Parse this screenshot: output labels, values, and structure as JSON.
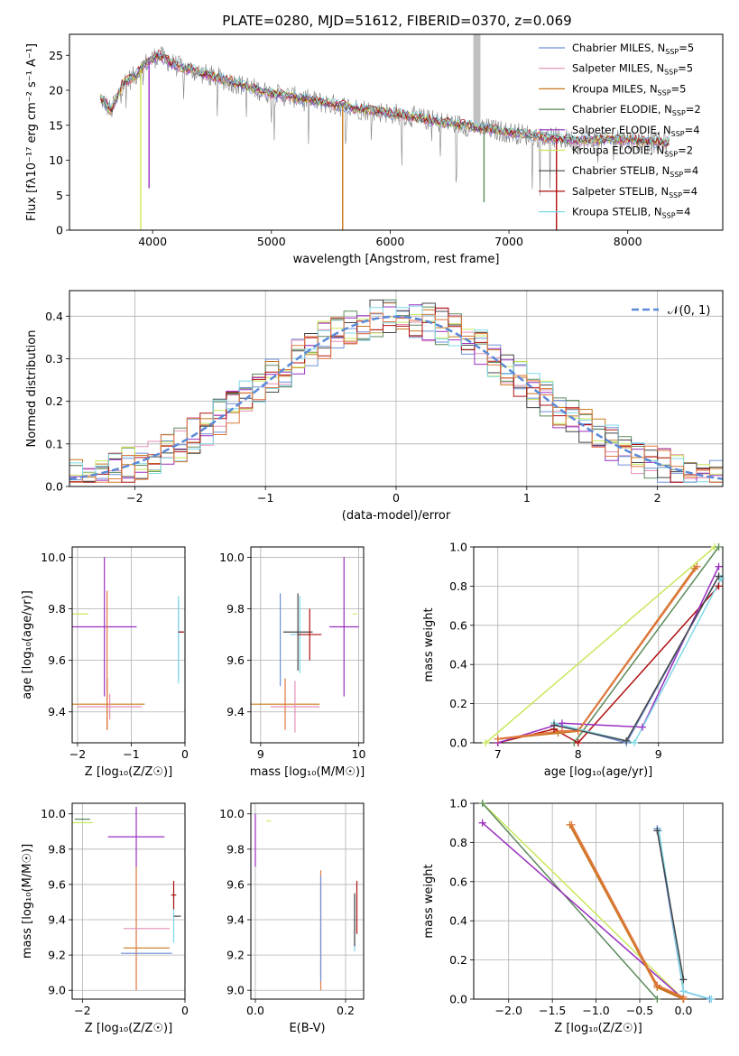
{
  "colors": {
    "chabrier_miles": "#6f8fd8",
    "salpeter_miles": "#e58fb8",
    "kroupa_miles": "#c8781d",
    "chabrier_elodie": "#5b8a5b",
    "salpeter_elodie": "#9a2fc0",
    "kroupa_elodie": "#c8e85a",
    "chabrier_stelib": "#444444",
    "salpeter_stelib": "#b01010",
    "kroupa_stelib": "#7fd8e8",
    "gauss": "#5b8ad8",
    "orange": "#e07840",
    "grid": "#b0b0b0",
    "spectrum_grey": "#808080"
  },
  "chart_data": [
    {
      "id": "spectrum",
      "type": "line",
      "title": "PLATE=0280, MJD=51612, FIBERID=0370, z=0.069",
      "xlabel": "wavelength [Angstrom, rest frame]",
      "ylabel": "Flux [fλ10⁻¹⁷ erg cm⁻² s⁻¹ A⁻¹]",
      "xlim": [
        3300,
        8800
      ],
      "ylim": [
        0,
        28
      ],
      "xticks": [
        4000,
        5000,
        6000,
        7000,
        8000
      ],
      "yticks": [
        0,
        5,
        10,
        15,
        20,
        25
      ],
      "grid": false,
      "legend_position": "top-right",
      "legend": [
        {
          "label": "Chabrier MILES, N",
          "sub": "SSP",
          "value": "=5",
          "color_key": "chabrier_miles"
        },
        {
          "label": "Salpeter MILES, N",
          "sub": "SSP",
          "value": "=5",
          "color_key": "salpeter_miles"
        },
        {
          "label": "Kroupa MILES, N",
          "sub": "SSP",
          "value": "=5",
          "color_key": "kroupa_miles"
        },
        {
          "label": "Chabrier ELODIE, N",
          "sub": "SSP",
          "value": "=2",
          "color_key": "chabrier_elodie"
        },
        {
          "label": "Salpeter ELODIE, N",
          "sub": "SSP",
          "value": "=4",
          "color_key": "salpeter_elodie"
        },
        {
          "label": "Kroupa ELODIE, N",
          "sub": "SSP",
          "value": "=2",
          "color_key": "kroupa_elodie"
        },
        {
          "label": "Chabrier STELIB, N",
          "sub": "SSP",
          "value": "=4",
          "color_key": "chabrier_stelib"
        },
        {
          "label": "Salpeter STELIB, N",
          "sub": "SSP",
          "value": "=4",
          "color_key": "salpeter_stelib"
        },
        {
          "label": "Kroupa STELIB, N",
          "sub": "SSP",
          "value": "=4",
          "color_key": "kroupa_stelib"
        }
      ],
      "continuum": {
        "x": [
          3560,
          3650,
          3750,
          3850,
          3950,
          4050,
          4200,
          4400,
          4600,
          4800,
          5000,
          5200,
          5500,
          5800,
          6100,
          6400,
          6700,
          7000,
          7300,
          7600,
          7900,
          8300
        ],
        "y": [
          19,
          17,
          21,
          22,
          24,
          25,
          23.5,
          22.5,
          21.5,
          20.5,
          19.5,
          19,
          18,
          17.2,
          16.5,
          15.5,
          14.8,
          14,
          13.3,
          12.8,
          13,
          12.5
        ]
      },
      "absorption_dips": [
        {
          "x": 3900,
          "y": 0
        },
        {
          "x": 3970,
          "y": 6
        },
        {
          "x": 5600,
          "y": 0
        },
        {
          "x": 6790,
          "y": 4
        },
        {
          "x": 7400,
          "y": 0
        }
      ],
      "emission_spike": {
        "x": [
          6700,
          6760
        ],
        "y": 28
      }
    },
    {
      "id": "residual_hist",
      "type": "histogram",
      "xlabel": "(data-model)/error",
      "ylabel": "Normed distribution",
      "xlim": [
        -2.5,
        2.5
      ],
      "ylim": [
        0,
        0.46
      ],
      "xticks": [
        -2,
        -1,
        0,
        1,
        2
      ],
      "yticks": [
        0.0,
        0.1,
        0.2,
        0.3,
        0.4
      ],
      "grid": true,
      "bin_width": 0.1,
      "gauss_label": "𝒩(0, 1)",
      "legend_position": "top-right"
    },
    {
      "id": "age_vs_z",
      "type": "scatter",
      "xlabel": "Z [log₁₀(Z/Z☉)]",
      "ylabel": "age [log₁₀(age/yr)]",
      "xlim": [
        -2.1,
        0
      ],
      "ylim": [
        9.28,
        10.04
      ],
      "xticks": [
        -2,
        -1,
        0
      ],
      "yticks": [
        9.4,
        9.6,
        9.8,
        10.0
      ],
      "grid": true,
      "points": [
        {
          "key": "salpeter_elodie",
          "x": -1.5,
          "y": 9.73,
          "xerr": 0.6,
          "yerr": 0.27
        },
        {
          "key": "kroupa_elodie",
          "x": -2.0,
          "y": 9.78,
          "xerr": 0.2,
          "yerr": 0
        },
        {
          "key": "kroupa_miles",
          "x": -1.45,
          "y": 9.43,
          "xerr": 0.7,
          "yerr": 0.1
        },
        {
          "key": "orange",
          "x": -1.45,
          "y": 9.6,
          "xerr": 0,
          "yerr": 0.27
        },
        {
          "key": "salpeter_miles",
          "x": -1.4,
          "y": 9.42,
          "xerr": 0.6,
          "yerr": 0.05
        },
        {
          "key": "chabrier_miles",
          "x": -0.12,
          "y": 9.68,
          "xerr": 0,
          "yerr": 0.15
        },
        {
          "key": "kroupa_stelib",
          "x": -0.12,
          "y": 9.68,
          "xerr": 0,
          "yerr": 0.17
        },
        {
          "key": "chabrier_stelib",
          "x": -0.07,
          "y": 9.71,
          "xerr": 0.05,
          "yerr": 0
        },
        {
          "key": "salpeter_stelib",
          "x": -0.07,
          "y": 9.71,
          "xerr": 0.05,
          "yerr": 0
        }
      ]
    },
    {
      "id": "age_vs_mass",
      "type": "scatter",
      "xlabel": "mass [log₁₀(M/M☉)]",
      "ylabel": "",
      "xlim": [
        8.9,
        10.05
      ],
      "ylim": [
        9.28,
        10.04
      ],
      "xticks": [
        9,
        10
      ],
      "yticks": [
        9.4,
        9.6,
        9.8,
        10.0
      ],
      "grid": true,
      "points": [
        {
          "key": "salpeter_elodie",
          "x": 9.85,
          "y": 9.73,
          "xerr": 0.15,
          "yerr": 0.27
        },
        {
          "key": "kroupa_elodie",
          "x": 9.96,
          "y": 9.78,
          "xerr": 0.02,
          "yerr": 0
        },
        {
          "key": "kroupa_miles",
          "x": 9.25,
          "y": 9.43,
          "xerr": 0.35,
          "yerr": 0
        },
        {
          "key": "orange",
          "x": 9.25,
          "y": 9.43,
          "xerr": 0,
          "yerr": 0.1
        },
        {
          "key": "salpeter_miles",
          "x": 9.35,
          "y": 9.42,
          "xerr": 0.25,
          "yerr": 0.1
        },
        {
          "key": "chabrier_miles",
          "x": 9.2,
          "y": 9.68,
          "xerr": 0,
          "yerr": 0.18
        },
        {
          "key": "kroupa_stelib",
          "x": 9.4,
          "y": 9.7,
          "xerr": 0.1,
          "yerr": 0.15
        },
        {
          "key": "chabrier_stelib",
          "x": 9.38,
          "y": 9.71,
          "xerr": 0.15,
          "yerr": 0.15
        },
        {
          "key": "salpeter_stelib",
          "x": 9.5,
          "y": 9.7,
          "xerr": 0.12,
          "yerr": 0.1
        }
      ]
    },
    {
      "id": "weight_vs_age",
      "type": "line",
      "xlabel": "age [log₁₀(age/yr)]",
      "ylabel": "mass weight",
      "xlim": [
        6.7,
        9.8
      ],
      "ylim": [
        0,
        1
      ],
      "xticks": [
        7,
        8,
        9
      ],
      "yticks": [
        0.0,
        0.2,
        0.4,
        0.6,
        0.8,
        1.0
      ],
      "grid": true,
      "series": [
        {
          "key": "kroupa_elodie",
          "x": [
            6.85,
            9.7
          ],
          "y": [
            0,
            1.0
          ]
        },
        {
          "key": "chabrier_elodie",
          "x": [
            7.95,
            9.75
          ],
          "y": [
            0,
            1.0
          ]
        },
        {
          "key": "salpeter_stelib",
          "x": [
            7.0,
            7.7,
            8.0,
            9.75
          ],
          "y": [
            0,
            0.07,
            0.0,
            0.8
          ]
        },
        {
          "key": "salpeter_elodie",
          "x": [
            7.0,
            7.8,
            8.8,
            9.75
          ],
          "y": [
            0,
            0.1,
            0.08,
            0.9
          ]
        },
        {
          "key": "kroupa_miles",
          "x": [
            7.0,
            7.75,
            8.0,
            9.45
          ],
          "y": [
            0.02,
            0.05,
            0.06,
            0.89
          ]
        },
        {
          "key": "orange",
          "x": [
            7.0,
            7.8,
            8.0,
            9.48
          ],
          "y": [
            0.02,
            0.06,
            0.06,
            0.9
          ]
        },
        {
          "key": "chabrier_miles",
          "x": [
            7.7,
            8.6,
            9.75
          ],
          "y": [
            0.1,
            0.0,
            0.85
          ]
        },
        {
          "key": "kroupa_stelib",
          "x": [
            7.7,
            8.7,
            9.78
          ],
          "y": [
            0.1,
            0.0,
            0.84
          ]
        },
        {
          "key": "chabrier_stelib",
          "x": [
            7.7,
            8.6,
            9.75
          ],
          "y": [
            0.09,
            0.01,
            0.85
          ]
        }
      ]
    },
    {
      "id": "mass_vs_z",
      "type": "scatter",
      "xlabel": "Z [log₁₀(Z/Z☉)]",
      "ylabel": "mass [log₁₀(M/M☉)]",
      "xlim": [
        -2.2,
        0
      ],
      "ylim": [
        8.95,
        10.06
      ],
      "xticks": [
        -2,
        0
      ],
      "yticks": [
        9.0,
        9.2,
        9.4,
        9.6,
        9.8,
        10.0
      ],
      "grid": true,
      "points": [
        {
          "key": "salpeter_elodie",
          "x": -0.95,
          "y": 9.87,
          "xerr": 0.55,
          "yerr": 0.17
        },
        {
          "key": "kroupa_elodie",
          "x": -2.0,
          "y": 9.95,
          "xerr": 0.2,
          "yerr": 0
        },
        {
          "key": "chabrier_elodie",
          "x": -2.0,
          "y": 9.97,
          "xerr": 0.15,
          "yerr": 0
        },
        {
          "key": "kroupa_miles",
          "x": -0.75,
          "y": 9.24,
          "xerr": 0.45,
          "yerr": 0
        },
        {
          "key": "orange",
          "x": -0.95,
          "y": 9.35,
          "xerr": 0,
          "yerr": 0.35
        },
        {
          "key": "salpeter_miles",
          "x": -0.75,
          "y": 9.35,
          "xerr": 0.45,
          "yerr": 0
        },
        {
          "key": "chabrier_miles",
          "x": -0.75,
          "y": 9.21,
          "xerr": 0.5,
          "yerr": 0
        },
        {
          "key": "kroupa_stelib",
          "x": -0.22,
          "y": 9.42,
          "xerr": 0,
          "yerr": 0.15
        },
        {
          "key": "chabrier_stelib",
          "x": -0.15,
          "y": 9.42,
          "xerr": 0.07,
          "yerr": 0
        },
        {
          "key": "salpeter_stelib",
          "x": -0.22,
          "y": 9.54,
          "xerr": 0.05,
          "yerr": 0.08
        }
      ]
    },
    {
      "id": "mass_vs_ebv",
      "type": "scatter",
      "xlabel": "E(B-V)",
      "ylabel": "",
      "xlim": [
        -0.01,
        0.24
      ],
      "ylim": [
        8.95,
        10.06
      ],
      "xticks": [
        0.0,
        0.2
      ],
      "yticks": [
        9.0,
        9.2,
        9.4,
        9.6,
        9.8,
        10.0
      ],
      "grid": true,
      "points": [
        {
          "key": "salpeter_elodie",
          "x": 0.0,
          "y": 9.85,
          "xerr": 0,
          "yerr": 0.15
        },
        {
          "key": "kroupa_elodie",
          "x": 0.03,
          "y": 9.96,
          "xerr": 0.005,
          "yerr": 0
        },
        {
          "key": "orange",
          "x": 0.145,
          "y": 9.34,
          "xerr": 0,
          "yerr": 0.34
        },
        {
          "key": "chabrier_miles",
          "x": 0.145,
          "y": 9.35,
          "xerr": 0,
          "yerr": 0.3
        },
        {
          "key": "kroupa_stelib",
          "x": 0.22,
          "y": 9.38,
          "xerr": 0,
          "yerr": 0.16
        },
        {
          "key": "chabrier_stelib",
          "x": 0.22,
          "y": 9.4,
          "xerr": 0,
          "yerr": 0.15
        },
        {
          "key": "salpeter_stelib",
          "x": 0.225,
          "y": 9.47,
          "xerr": 0,
          "yerr": 0.15
        }
      ]
    },
    {
      "id": "weight_vs_z",
      "type": "line",
      "xlabel": "Z [log₁₀(Z/Z☉)]",
      "ylabel": "mass weight",
      "xlim": [
        -2.4,
        0.45
      ],
      "ylim": [
        0,
        1
      ],
      "xticks": [
        -2.0,
        -1.5,
        -1.0,
        -0.5,
        0.0
      ],
      "yticks": [
        0.0,
        0.2,
        0.4,
        0.6,
        0.8,
        1.0
      ],
      "grid": true,
      "series": [
        {
          "key": "kroupa_elodie",
          "x": [
            -2.3,
            0.0
          ],
          "y": [
            1.0,
            0.0
          ]
        },
        {
          "key": "chabrier_elodie",
          "x": [
            -2.3,
            -0.3
          ],
          "y": [
            1.0,
            0.0
          ]
        },
        {
          "key": "salpeter_elodie",
          "x": [
            -2.3,
            0.0
          ],
          "y": [
            0.9,
            0.0
          ]
        },
        {
          "key": "salpeter_stelib",
          "x": [
            -0.3,
            0.0
          ],
          "y": [
            0.07,
            0.0
          ]
        },
        {
          "key": "kroupa_miles",
          "x": [
            -1.3,
            -0.3,
            0.0
          ],
          "y": [
            0.89,
            0.06,
            0.0
          ]
        },
        {
          "key": "orange",
          "x": [
            -1.28,
            -0.3,
            0.0
          ],
          "y": [
            0.89,
            0.07,
            0.01
          ]
        },
        {
          "key": "chabrier_miles",
          "x": [
            -0.3,
            0.0,
            0.3
          ],
          "y": [
            0.87,
            0.04,
            0.0
          ]
        },
        {
          "key": "kroupa_stelib",
          "x": [
            -0.28,
            0.0,
            0.32
          ],
          "y": [
            0.86,
            0.04,
            0.0
          ]
        },
        {
          "key": "chabrier_stelib",
          "x": [
            -0.3,
            0.0
          ],
          "y": [
            0.86,
            0.1
          ]
        }
      ]
    }
  ]
}
